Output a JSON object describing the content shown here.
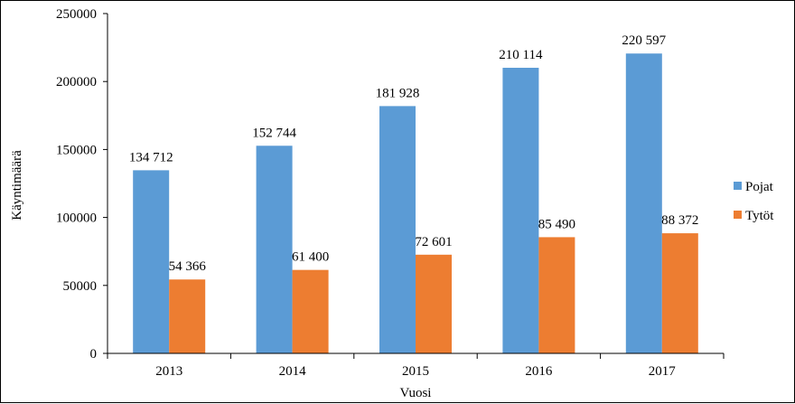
{
  "chart_data": {
    "type": "bar",
    "categories": [
      "2013",
      "2014",
      "2015",
      "2016",
      "2017"
    ],
    "series": [
      {
        "name": "Pojat",
        "values": [
          134712,
          152744,
          181928,
          210114,
          220597
        ],
        "labels": [
          "134 712",
          "152 744",
          "181 928",
          "210 114",
          "220 597"
        ],
        "color": "#5b9bd5"
      },
      {
        "name": "Tytöt",
        "values": [
          54366,
          61400,
          72601,
          85490,
          88372
        ],
        "labels": [
          "54 366",
          "61 400",
          "72 601",
          "85 490",
          "88 372"
        ],
        "color": "#ed7d31"
      }
    ],
    "xlabel": "Vuosi",
    "ylabel": "Käyntimäärä",
    "ylim": [
      0,
      250000
    ],
    "yticks": [
      "0",
      "50000",
      "100000",
      "150000",
      "200000",
      "250000"
    ],
    "ytick_values": [
      0,
      50000,
      100000,
      150000,
      200000,
      250000
    ],
    "grid": false,
    "legend_position": "right"
  }
}
